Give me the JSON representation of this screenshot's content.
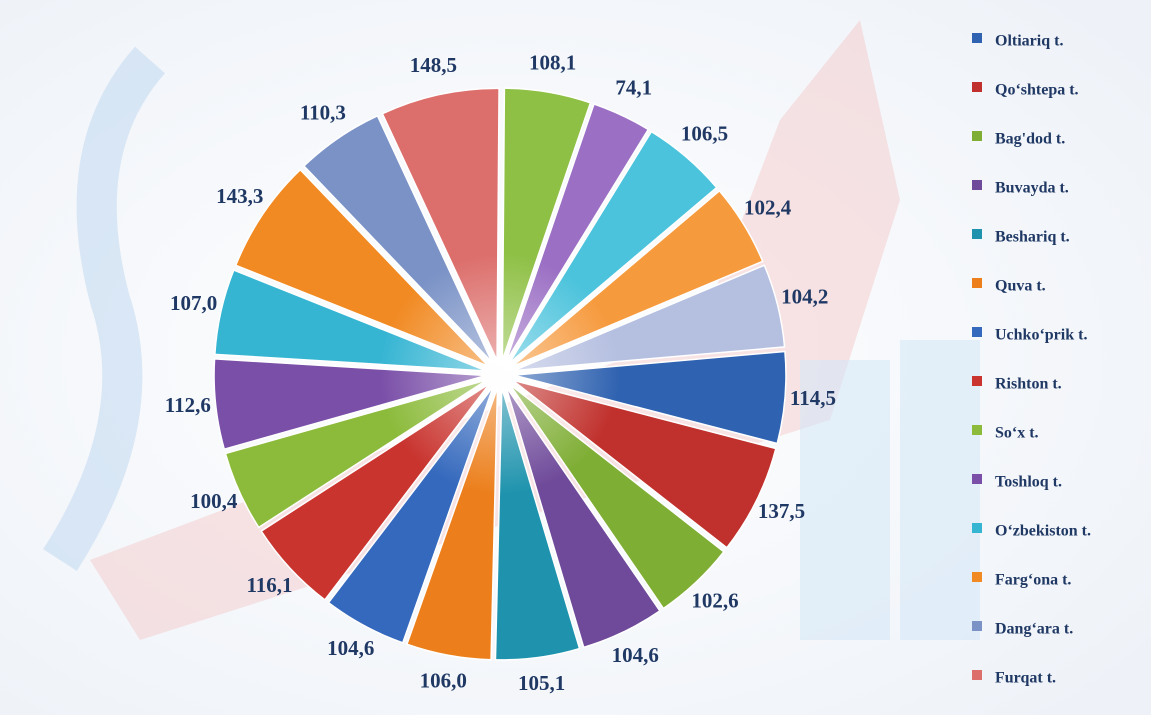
{
  "chart_data": {
    "type": "pie",
    "categories": [
      "Oltiariq t.",
      "Qo‘shtepa t.",
      "Bag'dod t.",
      "Buvayda t.",
      "Besharіq t.",
      "Quva t.",
      "Uchko‘prik t.",
      "Rishton t.",
      "So‘x t.",
      "Toshloq t.",
      "O‘zbekiston t.",
      "Farg‘ona t.",
      "Dang‘ara t.",
      "Furqat t.",
      null,
      null,
      null,
      null,
      null
    ],
    "values": [
      114.5,
      137.5,
      102.6,
      104.6,
      105.1,
      106.0,
      104.6,
      116.1,
      100.4,
      112.6,
      107.0,
      143.3,
      110.3,
      148.5,
      108.1,
      74.1,
      106.5,
      102.4,
      104.2
    ],
    "value_labels": [
      "114,5",
      "137,5",
      "102,6",
      "104,6",
      "105,1",
      "106,0",
      "104,6",
      "116,1",
      "100,4",
      "112,6",
      "107,0",
      "143,3",
      "110,3",
      "148,5",
      "108,1",
      "74,1",
      "106,5",
      "102,4",
      "104,2"
    ],
    "colors": [
      "#2f62b0",
      "#c0302c",
      "#7fae35",
      "#6f4a9a",
      "#1f93ad",
      "#ec7f1c",
      "#3569bd",
      "#c9342f",
      "#8cbb3c",
      "#7a4fa8",
      "#36b5d3",
      "#f18a23",
      "#7a92c6",
      "#dc6f6c",
      "#8fc046",
      "#9b6fc4",
      "#4cc3dc",
      "#f69a3e",
      "#b5bfe0"
    ],
    "legend": "right"
  }
}
